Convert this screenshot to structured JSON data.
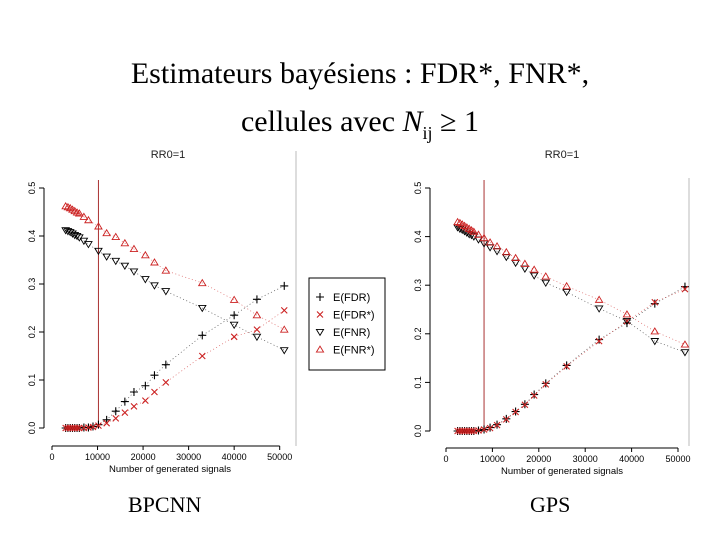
{
  "slide": {
    "title_line1": "Estimateurs bayésiens : FDR*, FNR*,",
    "title_line2_prefix": "cellules avec ",
    "title_var": "N",
    "title_sub": "ij",
    "title_suffix": " ≥ 1",
    "label_left": "BPCNN",
    "label_right": "GPS"
  },
  "legend": {
    "entries": [
      {
        "name": "E(FDR)",
        "symbol": "+",
        "color": "#000000"
      },
      {
        "name": "E(FDR*)",
        "symbol": "x",
        "color": "#cc2222"
      },
      {
        "name": "E(FNR)",
        "symbol": "tri-down",
        "color": "#000000"
      },
      {
        "name": "E(FNR*)",
        "symbol": "tri-up",
        "color": "#cc2222"
      }
    ]
  },
  "colors": {
    "black": "#000000",
    "red": "#cc2222",
    "vline": "#aa3333"
  },
  "chart_data": [
    {
      "type": "scatter",
      "title": "RR0=1",
      "xlabel": "Number of generated signals",
      "ylabel": "",
      "xlim": [
        0,
        52000
      ],
      "ylim": [
        0,
        0.5
      ],
      "xticks": [
        "0",
        "10000",
        "20000",
        "30000",
        "40000",
        "50000"
      ],
      "xtick_values": [
        0,
        10000,
        20000,
        30000,
        40000,
        50000
      ],
      "yticks": [
        "0.0",
        "0.1",
        "0.2",
        "0.3",
        "0.4",
        "0.5"
      ],
      "ytick_values": [
        0,
        0.1,
        0.2,
        0.3,
        0.4,
        0.5
      ],
      "vline": 10200,
      "series": [
        {
          "name": "E(FDR)",
          "symbol": "+",
          "color": "#000000",
          "x": [
            3000,
            3500,
            4000,
            4500,
            5000,
            5500,
            6000,
            7000,
            8000,
            9000,
            10200,
            12000,
            14000,
            16000,
            18000,
            20500,
            22500,
            25000,
            33000,
            40000,
            45000,
            51000
          ],
          "y": [
            0.0,
            0.0,
            0.0,
            0.0,
            0.0,
            0.0,
            0.0,
            0.001,
            0.001,
            0.003,
            0.007,
            0.017,
            0.035,
            0.055,
            0.075,
            0.088,
            0.11,
            0.132,
            0.193,
            0.235,
            0.268,
            0.296
          ]
        },
        {
          "name": "E(FDR*)",
          "symbol": "x",
          "color": "#cc2222",
          "x": [
            3000,
            3500,
            4000,
            4500,
            5000,
            5500,
            6000,
            7000,
            8000,
            9000,
            10200,
            12000,
            14000,
            16000,
            18000,
            20500,
            22500,
            25000,
            33000,
            40000,
            45000,
            51000
          ],
          "y": [
            0.0,
            0.0,
            0.0,
            0.0,
            0.0,
            0.0,
            0.0,
            0.0,
            0.001,
            0.002,
            0.005,
            0.01,
            0.02,
            0.032,
            0.045,
            0.057,
            0.075,
            0.095,
            0.15,
            0.19,
            0.205,
            0.245
          ]
        },
        {
          "name": "E(FNR)",
          "symbol": "tri-down",
          "color": "#000000",
          "x": [
            3000,
            3500,
            4000,
            4500,
            5000,
            5500,
            6000,
            7000,
            8000,
            10200,
            12000,
            14000,
            16000,
            18000,
            20500,
            22500,
            25000,
            33000,
            40000,
            45000,
            51000
          ],
          "y": [
            0.412,
            0.41,
            0.408,
            0.405,
            0.402,
            0.4,
            0.397,
            0.39,
            0.383,
            0.369,
            0.357,
            0.348,
            0.338,
            0.326,
            0.31,
            0.297,
            0.285,
            0.25,
            0.215,
            0.19,
            0.162
          ]
        },
        {
          "name": "E(FNR*)",
          "symbol": "tri-up",
          "color": "#cc2222",
          "x": [
            3000,
            3500,
            4000,
            4500,
            5000,
            5500,
            6000,
            7000,
            8000,
            10200,
            12000,
            14000,
            16000,
            18000,
            20500,
            22500,
            25000,
            33000,
            40000,
            45000,
            51000
          ],
          "y": [
            0.462,
            0.46,
            0.458,
            0.455,
            0.452,
            0.449,
            0.447,
            0.44,
            0.433,
            0.42,
            0.406,
            0.398,
            0.385,
            0.373,
            0.36,
            0.345,
            0.328,
            0.302,
            0.267,
            0.235,
            0.205
          ]
        }
      ]
    },
    {
      "type": "scatter",
      "title": "RR0=1",
      "xlabel": "Number of generated signals",
      "ylabel": "",
      "xlim": [
        0,
        52000
      ],
      "ylim": [
        0,
        0.5
      ],
      "xticks": [
        "0",
        "10000",
        "20000",
        "30000",
        "40000",
        "50000"
      ],
      "xtick_values": [
        0,
        10000,
        20000,
        30000,
        40000,
        50000
      ],
      "yticks": [
        "0.0",
        "0.1",
        "0.2",
        "0.3",
        "0.4",
        "0.5"
      ],
      "ytick_values": [
        0,
        0.1,
        0.2,
        0.3,
        0.4,
        0.5
      ],
      "vline": 8200,
      "series": [
        {
          "name": "E(FDR)",
          "symbol": "+",
          "color": "#000000",
          "x": [
            2500,
            3000,
            3500,
            4000,
            4500,
            5000,
            5500,
            6000,
            7000,
            8200,
            9500,
            11000,
            13000,
            15000,
            17000,
            19000,
            21500,
            26000,
            33000,
            39000,
            45000,
            51500
          ],
          "y": [
            0.0,
            0.0,
            0.0,
            0.0,
            0.0,
            0.0,
            0.0,
            0.0,
            0.001,
            0.003,
            0.007,
            0.013,
            0.025,
            0.04,
            0.055,
            0.075,
            0.098,
            0.135,
            0.188,
            0.222,
            0.262,
            0.297
          ]
        },
        {
          "name": "E(FDR*)",
          "symbol": "x",
          "color": "#cc2222",
          "x": [
            2500,
            3000,
            3500,
            4000,
            4500,
            5000,
            5500,
            6000,
            7000,
            8200,
            9500,
            11000,
            13000,
            15000,
            17000,
            19000,
            21500,
            26000,
            33000,
            39000,
            45000,
            51500
          ],
          "y": [
            0.0,
            0.0,
            0.0,
            0.0,
            0.0,
            0.0,
            0.0,
            0.0,
            0.001,
            0.003,
            0.006,
            0.012,
            0.024,
            0.039,
            0.054,
            0.073,
            0.096,
            0.133,
            0.185,
            0.226,
            0.265,
            0.292
          ]
        },
        {
          "name": "E(FNR)",
          "symbol": "tri-down",
          "color": "#000000",
          "x": [
            2500,
            3000,
            3500,
            4000,
            4500,
            5000,
            5500,
            6000,
            7000,
            8200,
            9500,
            11000,
            13000,
            15000,
            17000,
            19000,
            21500,
            26000,
            33000,
            39000,
            45000,
            51500
          ],
          "y": [
            0.419,
            0.416,
            0.414,
            0.411,
            0.408,
            0.405,
            0.403,
            0.4,
            0.394,
            0.386,
            0.378,
            0.37,
            0.358,
            0.346,
            0.334,
            0.32,
            0.305,
            0.286,
            0.252,
            0.226,
            0.185,
            0.162
          ]
        },
        {
          "name": "E(FNR*)",
          "symbol": "tri-up",
          "color": "#cc2222",
          "x": [
            2500,
            3000,
            3500,
            4000,
            4500,
            5000,
            5500,
            6000,
            7000,
            8200,
            9500,
            11000,
            13000,
            15000,
            17000,
            19000,
            21500,
            26000,
            33000,
            39000,
            45000,
            51500
          ],
          "y": [
            0.43,
            0.428,
            0.425,
            0.422,
            0.419,
            0.416,
            0.413,
            0.41,
            0.404,
            0.397,
            0.388,
            0.38,
            0.368,
            0.356,
            0.344,
            0.332,
            0.318,
            0.298,
            0.27,
            0.24,
            0.205,
            0.178
          ]
        }
      ]
    }
  ]
}
